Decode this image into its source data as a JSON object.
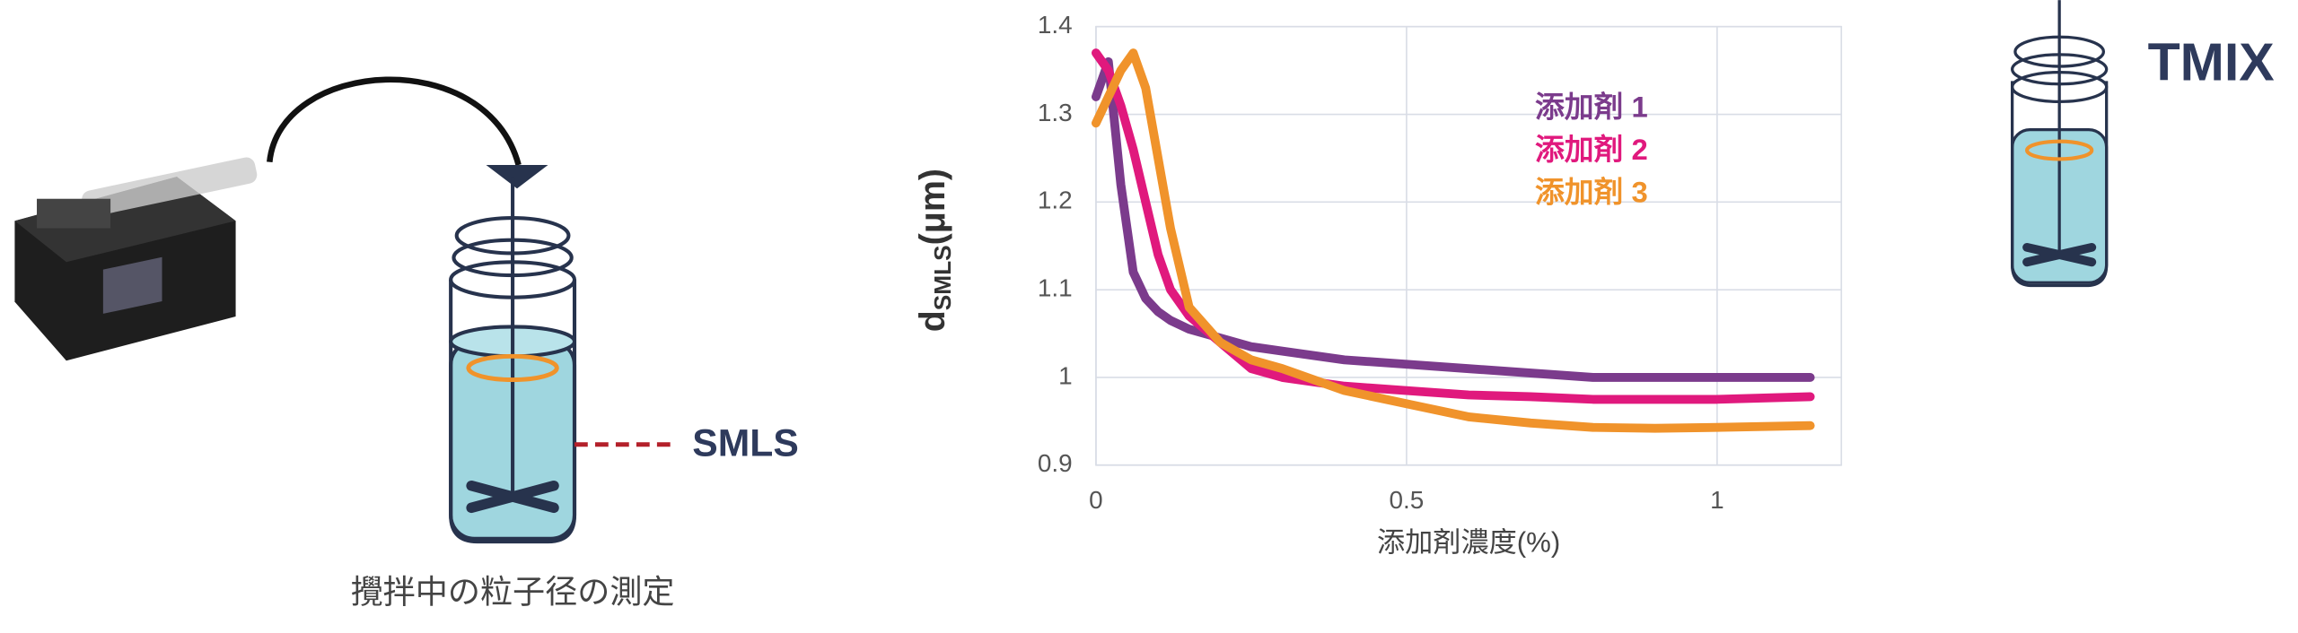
{
  "chart_data": {
    "type": "line",
    "y_label": {
      "main": "d",
      "sub": "SMLS",
      "unit": "(μm)"
    },
    "x_label": "添加剤濃度(%)",
    "x": [
      0,
      0.02,
      0.04,
      0.06,
      0.08,
      0.1,
      0.12,
      0.15,
      0.2,
      0.25,
      0.3,
      0.4,
      0.5,
      0.6,
      0.7,
      0.8,
      0.9,
      1.0,
      1.15
    ],
    "series": [
      {
        "name": "添加剤 1",
        "color": "#7b3b8c",
        "values": [
          1.32,
          1.36,
          1.22,
          1.12,
          1.09,
          1.075,
          1.065,
          1.055,
          1.045,
          1.035,
          1.03,
          1.02,
          1.015,
          1.01,
          1.005,
          1.0,
          1.0,
          1.0,
          1.0
        ]
      },
      {
        "name": "添加剤 2",
        "color": "#e0197d",
        "values": [
          1.37,
          1.35,
          1.31,
          1.26,
          1.2,
          1.14,
          1.1,
          1.07,
          1.04,
          1.01,
          1.0,
          0.99,
          0.985,
          0.98,
          0.978,
          0.975,
          0.975,
          0.975,
          0.978
        ]
      },
      {
        "name": "添加剤 3",
        "color": "#f0932b",
        "values": [
          1.29,
          1.32,
          1.35,
          1.37,
          1.33,
          1.25,
          1.17,
          1.08,
          1.04,
          1.02,
          1.01,
          0.985,
          0.97,
          0.955,
          0.948,
          0.943,
          0.942,
          0.943,
          0.945
        ]
      }
    ],
    "xlim": [
      0,
      1.2
    ],
    "xticks": [
      0,
      0.5,
      1
    ],
    "ylim": [
      0.9,
      1.4
    ],
    "yticks": [
      0.9,
      1,
      1.1,
      1.2,
      1.3,
      1.4
    ],
    "grid": true
  },
  "labels": {
    "smls": "SMLS",
    "caption": "攪拌中の粒子径の測定",
    "tmix": "TMIX"
  }
}
